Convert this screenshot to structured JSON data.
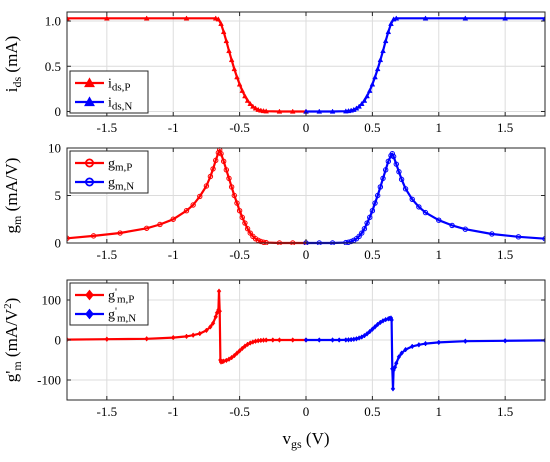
{
  "chart_data": [
    {
      "type": "line",
      "ylabel": "i",
      "ylabel_sub": "ds",
      "ylabel_unit": " (mA)",
      "xlim": [
        -1.8,
        1.8
      ],
      "ylim": [
        -0.05,
        1.1
      ],
      "xticks": [
        -1.5,
        -1,
        -0.5,
        0,
        0.5,
        1,
        1.5
      ],
      "xtick_labels": [
        "-1.5",
        "-1",
        "-0.5",
        "0",
        "0.5",
        "1",
        "1.5"
      ],
      "yticks": [
        0,
        0.5,
        1.0
      ],
      "ytick_labels": [
        "0",
        "0.5",
        "1.0"
      ],
      "grid": true,
      "legend_position": "bottom-left",
      "series": [
        {
          "name": "i",
          "sub": "ds,P",
          "prime": false,
          "color": "#ff0000",
          "marker": "triangle",
          "x": [
            -1.8,
            -1.5,
            -1.2,
            -0.9,
            -0.68,
            -0.66,
            -0.64,
            -0.62,
            -0.6,
            -0.58,
            -0.56,
            -0.54,
            -0.52,
            -0.5,
            -0.48,
            -0.46,
            -0.44,
            -0.42,
            -0.4,
            -0.38,
            -0.36,
            -0.34,
            -0.32,
            -0.3,
            -0.2,
            -0.1,
            0
          ],
          "y": [
            1.03,
            1.03,
            1.03,
            1.03,
            1.03,
            1.02,
            0.97,
            0.88,
            0.78,
            0.67,
            0.57,
            0.47,
            0.38,
            0.3,
            0.23,
            0.17,
            0.12,
            0.085,
            0.055,
            0.035,
            0.02,
            0.012,
            0.006,
            0.003,
            0.0,
            0.0,
            0.0
          ]
        },
        {
          "name": "i",
          "sub": "ds,N",
          "prime": false,
          "color": "#0000ff",
          "marker": "triangle",
          "x": [
            0,
            0.1,
            0.2,
            0.3,
            0.32,
            0.34,
            0.36,
            0.38,
            0.4,
            0.42,
            0.44,
            0.46,
            0.48,
            0.5,
            0.52,
            0.54,
            0.56,
            0.58,
            0.6,
            0.62,
            0.64,
            0.66,
            0.68,
            0.9,
            1.2,
            1.5,
            1.8
          ],
          "y": [
            0.0,
            0.0,
            0.0,
            0.003,
            0.006,
            0.012,
            0.02,
            0.035,
            0.055,
            0.085,
            0.12,
            0.17,
            0.23,
            0.3,
            0.38,
            0.47,
            0.57,
            0.67,
            0.78,
            0.88,
            0.97,
            1.02,
            1.03,
            1.03,
            1.03,
            1.03,
            1.03
          ]
        }
      ]
    },
    {
      "type": "line",
      "ylabel": "g",
      "ylabel_sub": "m",
      "ylabel_unit": " (mA/V)",
      "xlim": [
        -1.8,
        1.8
      ],
      "ylim": [
        0,
        10
      ],
      "xticks": [
        -1.5,
        -1,
        -0.5,
        0,
        0.5,
        1,
        1.5
      ],
      "xtick_labels": [
        "-1.5",
        "-1",
        "-0.5",
        "0",
        "0.5",
        "1",
        "1.5"
      ],
      "yticks": [
        0,
        5,
        10
      ],
      "ytick_labels": [
        "0",
        "5",
        "10"
      ],
      "grid": true,
      "legend_position": "top-left",
      "series": [
        {
          "name": "g",
          "sub": "m,P",
          "prime": false,
          "color": "#ff0000",
          "marker": "circle",
          "x": [
            -1.8,
            -1.6,
            -1.4,
            -1.2,
            -1.1,
            -1.0,
            -0.9,
            -0.85,
            -0.8,
            -0.75,
            -0.72,
            -0.7,
            -0.68,
            -0.66,
            -0.65,
            -0.64,
            -0.62,
            -0.6,
            -0.58,
            -0.56,
            -0.54,
            -0.52,
            -0.5,
            -0.48,
            -0.46,
            -0.44,
            -0.42,
            -0.4,
            -0.38,
            -0.36,
            -0.34,
            -0.32,
            -0.3,
            -0.2,
            -0.1,
            0
          ],
          "y": [
            0.5,
            0.75,
            1.05,
            1.55,
            1.95,
            2.5,
            3.4,
            4.0,
            4.9,
            6.0,
            7.0,
            7.8,
            8.7,
            9.5,
            9.8,
            9.4,
            8.6,
            7.7,
            6.8,
            5.9,
            5.0,
            4.2,
            3.4,
            2.7,
            2.1,
            1.5,
            1.05,
            0.7,
            0.45,
            0.28,
            0.16,
            0.08,
            0.04,
            0.0,
            0.0,
            0.0
          ]
        },
        {
          "name": "g",
          "sub": "m,N",
          "prime": false,
          "color": "#0000ff",
          "marker": "circle",
          "x": [
            0,
            0.1,
            0.2,
            0.3,
            0.32,
            0.34,
            0.36,
            0.38,
            0.4,
            0.42,
            0.44,
            0.46,
            0.48,
            0.5,
            0.52,
            0.54,
            0.56,
            0.58,
            0.6,
            0.62,
            0.64,
            0.65,
            0.66,
            0.68,
            0.7,
            0.72,
            0.75,
            0.8,
            0.85,
            0.9,
            1.0,
            1.1,
            1.2,
            1.4,
            1.6,
            1.8
          ],
          "y": [
            0.0,
            0.0,
            0.0,
            0.04,
            0.08,
            0.16,
            0.28,
            0.45,
            0.7,
            1.05,
            1.5,
            2.1,
            2.7,
            3.4,
            4.2,
            5.0,
            5.9,
            6.8,
            7.7,
            8.6,
            9.2,
            9.4,
            9.1,
            8.3,
            7.5,
            6.7,
            5.7,
            4.6,
            3.8,
            3.2,
            2.4,
            1.85,
            1.45,
            0.95,
            0.65,
            0.45
          ]
        }
      ]
    },
    {
      "type": "line",
      "ylabel": "g",
      "ylabel_prime": "'",
      "ylabel_sub": "m",
      "ylabel_unit": " (mA/V",
      "ylabel_unit_sup": "2",
      "ylabel_unit_end": ")",
      "xlabel": "v",
      "xlabel_sub": "gs",
      "xlabel_unit": " (V)",
      "xlim": [
        -1.8,
        1.8
      ],
      "ylim": [
        -150,
        150
      ],
      "xticks": [
        -1.5,
        -1,
        -0.5,
        0,
        0.5,
        1,
        1.5
      ],
      "xtick_labels": [
        "-1.5",
        "-1",
        "-0.5",
        "0",
        "0.5",
        "1",
        "1.5"
      ],
      "yticks": [
        -100,
        0,
        100
      ],
      "ytick_labels": [
        "-100",
        "0",
        "100"
      ],
      "grid": true,
      "legend_position": "top-left",
      "series": [
        {
          "name": "g",
          "sub": "m,P",
          "prime": true,
          "color": "#ff0000",
          "marker": "diamond",
          "x": [
            -1.8,
            -1.5,
            -1.2,
            -1.0,
            -0.9,
            -0.85,
            -0.8,
            -0.75,
            -0.72,
            -0.7,
            -0.68,
            -0.67,
            -0.66,
            -0.655,
            -0.65,
            -0.645,
            -0.64,
            -0.63,
            -0.62,
            -0.6,
            -0.58,
            -0.56,
            -0.54,
            -0.52,
            -0.5,
            -0.48,
            -0.46,
            -0.44,
            -0.42,
            -0.4,
            -0.38,
            -0.36,
            -0.34,
            -0.32,
            -0.3,
            -0.25,
            -0.2,
            -0.1,
            0
          ],
          "y": [
            1,
            2,
            3,
            6,
            9,
            12,
            16,
            24,
            33,
            42,
            58,
            68,
            75,
            122,
            72,
            -50,
            -55,
            -54,
            -53,
            -51,
            -48,
            -44,
            -39,
            -33,
            -27,
            -21,
            -15.5,
            -11,
            -7.5,
            -5,
            -3,
            -1.8,
            -1,
            -0.5,
            -0.2,
            0,
            0,
            0,
            0
          ]
        },
        {
          "name": "g",
          "sub": "m,N",
          "prime": true,
          "color": "#0000ff",
          "marker": "diamond",
          "x": [
            0,
            0.1,
            0.2,
            0.25,
            0.3,
            0.32,
            0.34,
            0.36,
            0.38,
            0.4,
            0.42,
            0.44,
            0.46,
            0.48,
            0.5,
            0.52,
            0.54,
            0.56,
            0.58,
            0.6,
            0.62,
            0.63,
            0.64,
            0.645,
            0.65,
            0.655,
            0.66,
            0.67,
            0.68,
            0.7,
            0.72,
            0.75,
            0.8,
            0.85,
            0.9,
            1.0,
            1.2,
            1.5,
            1.8
          ],
          "y": [
            0,
            0,
            0,
            0,
            0.2,
            0.5,
            1,
            1.8,
            3,
            5,
            7.5,
            11,
            15.5,
            21,
            27,
            33,
            39,
            44,
            48,
            51,
            53,
            54,
            55,
            50,
            -72,
            -122,
            -75,
            -68,
            -58,
            -42,
            -33,
            -24,
            -16,
            -12,
            -9,
            -6,
            -3,
            -2,
            -1
          ]
        }
      ]
    }
  ]
}
